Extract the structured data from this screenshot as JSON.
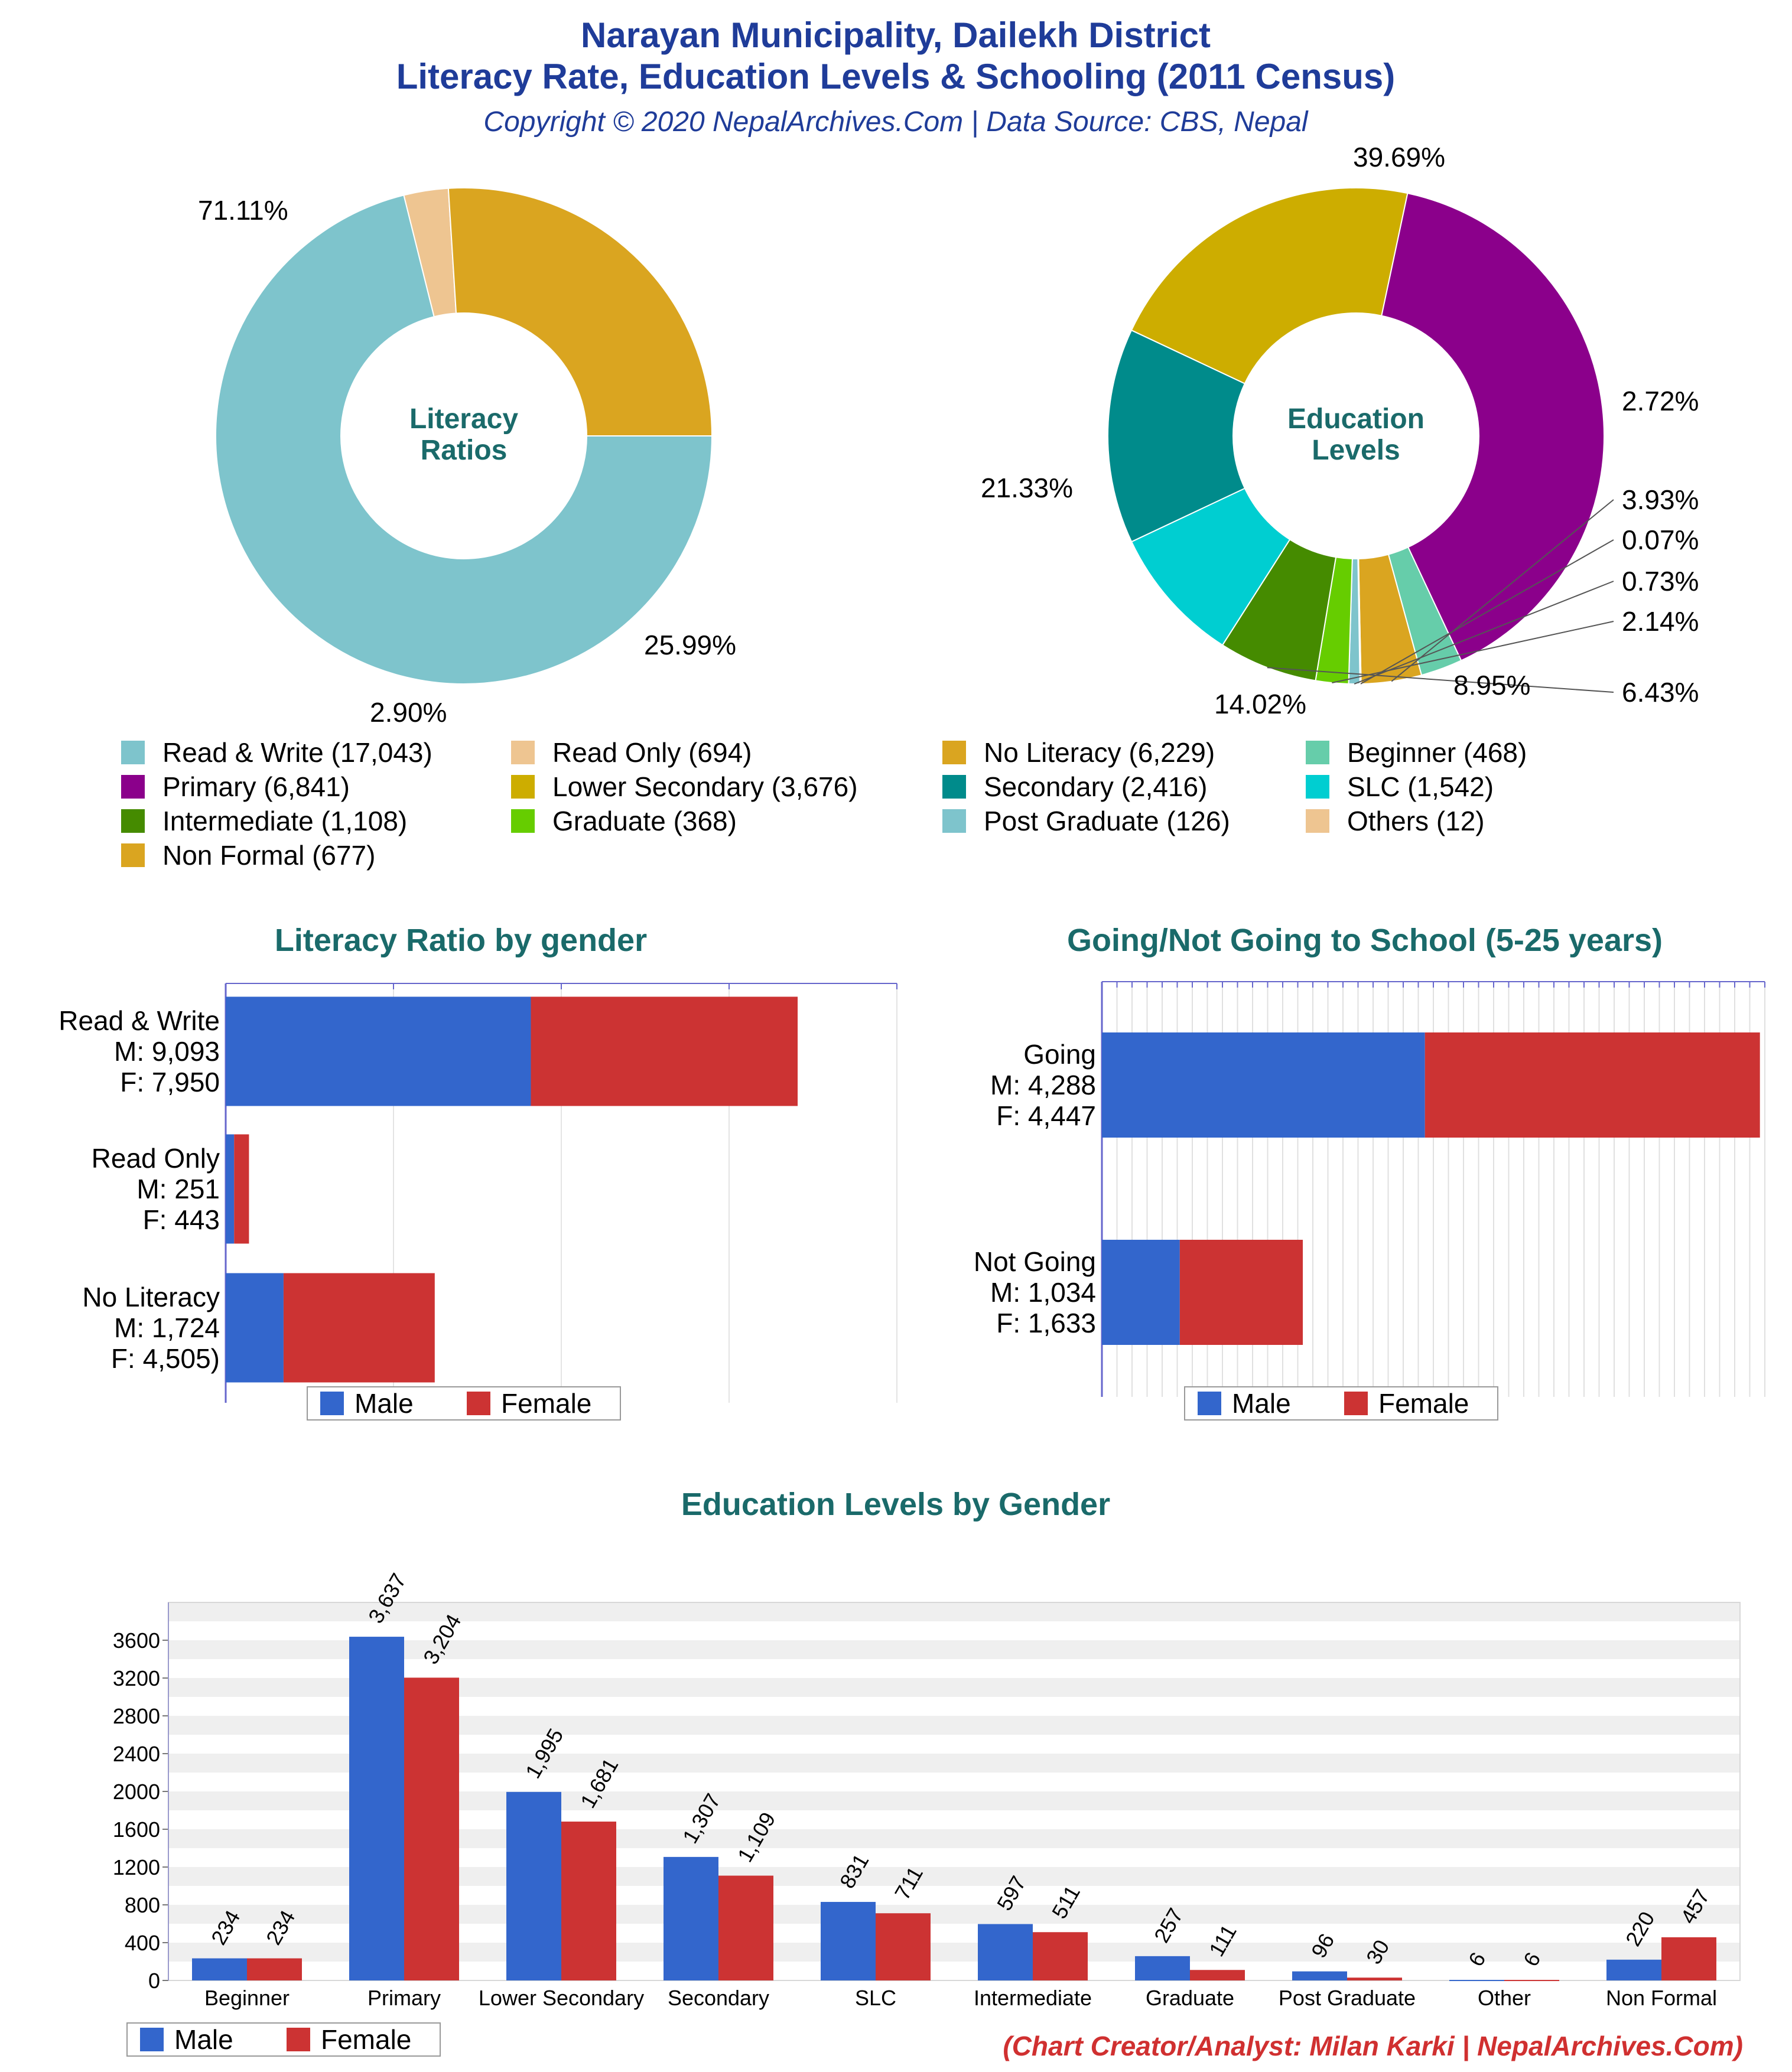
{
  "header": {
    "title_line1": "Narayan Municipality, Dailekh District",
    "title_line2": "Literacy Rate, Education Levels & Schooling (2011 Census)",
    "copyright": "Copyright © 2020 NepalArchives.Com | Data Source: CBS, Nepal"
  },
  "credit": "(Chart Creator/Analyst: Milan Karki | NepalArchives.Com)",
  "colors": {
    "male": "#3366cc",
    "female": "#cc3333",
    "title": "#1f3c99",
    "section": "#1a6a6a"
  },
  "chart_data": [
    {
      "type": "pie",
      "center_label": [
        "Literacy",
        "Ratios"
      ],
      "slices": [
        {
          "label": "Read & Write",
          "value": 17043,
          "percent_label": "71.11%",
          "color": "#7ec4cc"
        },
        {
          "label": "Read Only",
          "value": 694,
          "percent_label": "2.90%",
          "color": "#eec591"
        },
        {
          "label": "No Literacy",
          "value": 6229,
          "percent_label": "25.99%",
          "color": "#daa520"
        }
      ]
    },
    {
      "type": "pie",
      "center_label": [
        "Education",
        "Levels"
      ],
      "slices": [
        {
          "label": "Primary",
          "value": 6841,
          "percent_label": "39.69%",
          "color": "#8b008b"
        },
        {
          "label": "Beginner",
          "value": 468,
          "percent_label": "2.72%",
          "color": "#66cdaa"
        },
        {
          "label": "Non Formal",
          "value": 677,
          "percent_label": "3.93%",
          "color": "#daa520"
        },
        {
          "label": "Others",
          "value": 12,
          "percent_label": "0.07%",
          "color": "#eec591"
        },
        {
          "label": "Post Graduate",
          "value": 126,
          "percent_label": "0.73%",
          "color": "#7ec4cc"
        },
        {
          "label": "Graduate",
          "value": 368,
          "percent_label": "2.14%",
          "color": "#66cd00"
        },
        {
          "label": "Intermediate",
          "value": 1108,
          "percent_label": "6.43%",
          "color": "#458b00"
        },
        {
          "label": "SLC",
          "value": 1542,
          "percent_label": "8.95%",
          "color": "#00ced1"
        },
        {
          "label": "Secondary",
          "value": 2416,
          "percent_label": "14.02%",
          "color": "#008b8b"
        },
        {
          "label": "Lower Secondary",
          "value": 3676,
          "percent_label": "21.33%",
          "color": "#cdad00"
        }
      ]
    },
    {
      "type": "bar",
      "orientation": "horizontal",
      "stacked": true,
      "title": "Literacy Ratio by gender",
      "categories": [
        "Read & Write",
        "Read Only",
        "No Literacy"
      ],
      "category_labels": [
        [
          "Read & Write",
          "M: 9,093",
          "F: 7,950"
        ],
        [
          "Read Only",
          "M: 251",
          "F: 443"
        ],
        [
          "No Literacy",
          "M: 1,724",
          "F: 4,505)"
        ]
      ],
      "series": [
        {
          "name": "Male",
          "values": [
            9093,
            251,
            1724
          ]
        },
        {
          "name": "Female",
          "values": [
            7950,
            443,
            4505
          ]
        }
      ],
      "xlim": [
        0,
        20000
      ],
      "grid": true,
      "legend": "bottom"
    },
    {
      "type": "bar",
      "orientation": "horizontal",
      "stacked": true,
      "title": "Going/Not Going to School (5-25 years)",
      "categories": [
        "Going",
        "Not Going"
      ],
      "category_labels": [
        [
          "Going",
          "M: 4,288",
          "F: 4,447"
        ],
        [
          "Not Going",
          "M: 1,034",
          "F: 1,633"
        ]
      ],
      "series": [
        {
          "name": "Male",
          "values": [
            4288,
            1034
          ]
        },
        {
          "name": "Female",
          "values": [
            4447,
            1633
          ]
        }
      ],
      "xlim": [
        0,
        8800
      ],
      "grid": true,
      "legend": "bottom"
    },
    {
      "type": "bar",
      "orientation": "vertical",
      "title": "Education Levels by Gender",
      "categories": [
        "Beginner",
        "Primary",
        "Lower Secondary",
        "Secondary",
        "SLC",
        "Intermediate",
        "Graduate",
        "Post Graduate",
        "Other",
        "Non Formal"
      ],
      "series": [
        {
          "name": "Male",
          "values": [
            234,
            3637,
            1995,
            1307,
            831,
            597,
            257,
            96,
            6,
            220
          ],
          "labels": [
            "234",
            "3,637",
            "1,995",
            "1,307",
            "831",
            "597",
            "257",
            "96",
            "6",
            "220"
          ]
        },
        {
          "name": "Female",
          "values": [
            234,
            3204,
            1681,
            1109,
            711,
            511,
            111,
            30,
            6,
            457
          ],
          "labels": [
            "234",
            "3,204",
            "1,681",
            "1,109",
            "711",
            "511",
            "111",
            "30",
            "6",
            "457"
          ]
        }
      ],
      "yticks": [
        "0",
        "400",
        "800",
        "1200",
        "1600",
        "2000",
        "2400",
        "2800",
        "3200",
        "3600"
      ],
      "ylim": [
        0,
        4000
      ],
      "grid": true,
      "legend": "bottom-left"
    }
  ],
  "legend_pies": [
    {
      "label": "Read & Write (17,043)",
      "color": "#7ec4cc"
    },
    {
      "label": "Read Only (694)",
      "color": "#eec591"
    },
    {
      "label": "No Literacy (6,229)",
      "color": "#daa520"
    },
    {
      "label": "Beginner (468)",
      "color": "#66cdaa"
    },
    {
      "label": "Primary (6,841)",
      "color": "#8b008b"
    },
    {
      "label": "Lower Secondary (3,676)",
      "color": "#cdad00"
    },
    {
      "label": "Secondary (2,416)",
      "color": "#008b8b"
    },
    {
      "label": "SLC (1,542)",
      "color": "#00ced1"
    },
    {
      "label": "Intermediate (1,108)",
      "color": "#458b00"
    },
    {
      "label": "Graduate (368)",
      "color": "#66cd00"
    },
    {
      "label": "Post Graduate (126)",
      "color": "#7ec4cc"
    },
    {
      "label": "Others (12)",
      "color": "#eec591"
    },
    {
      "label": "Non Formal (677)",
      "color": "#daa520"
    }
  ]
}
